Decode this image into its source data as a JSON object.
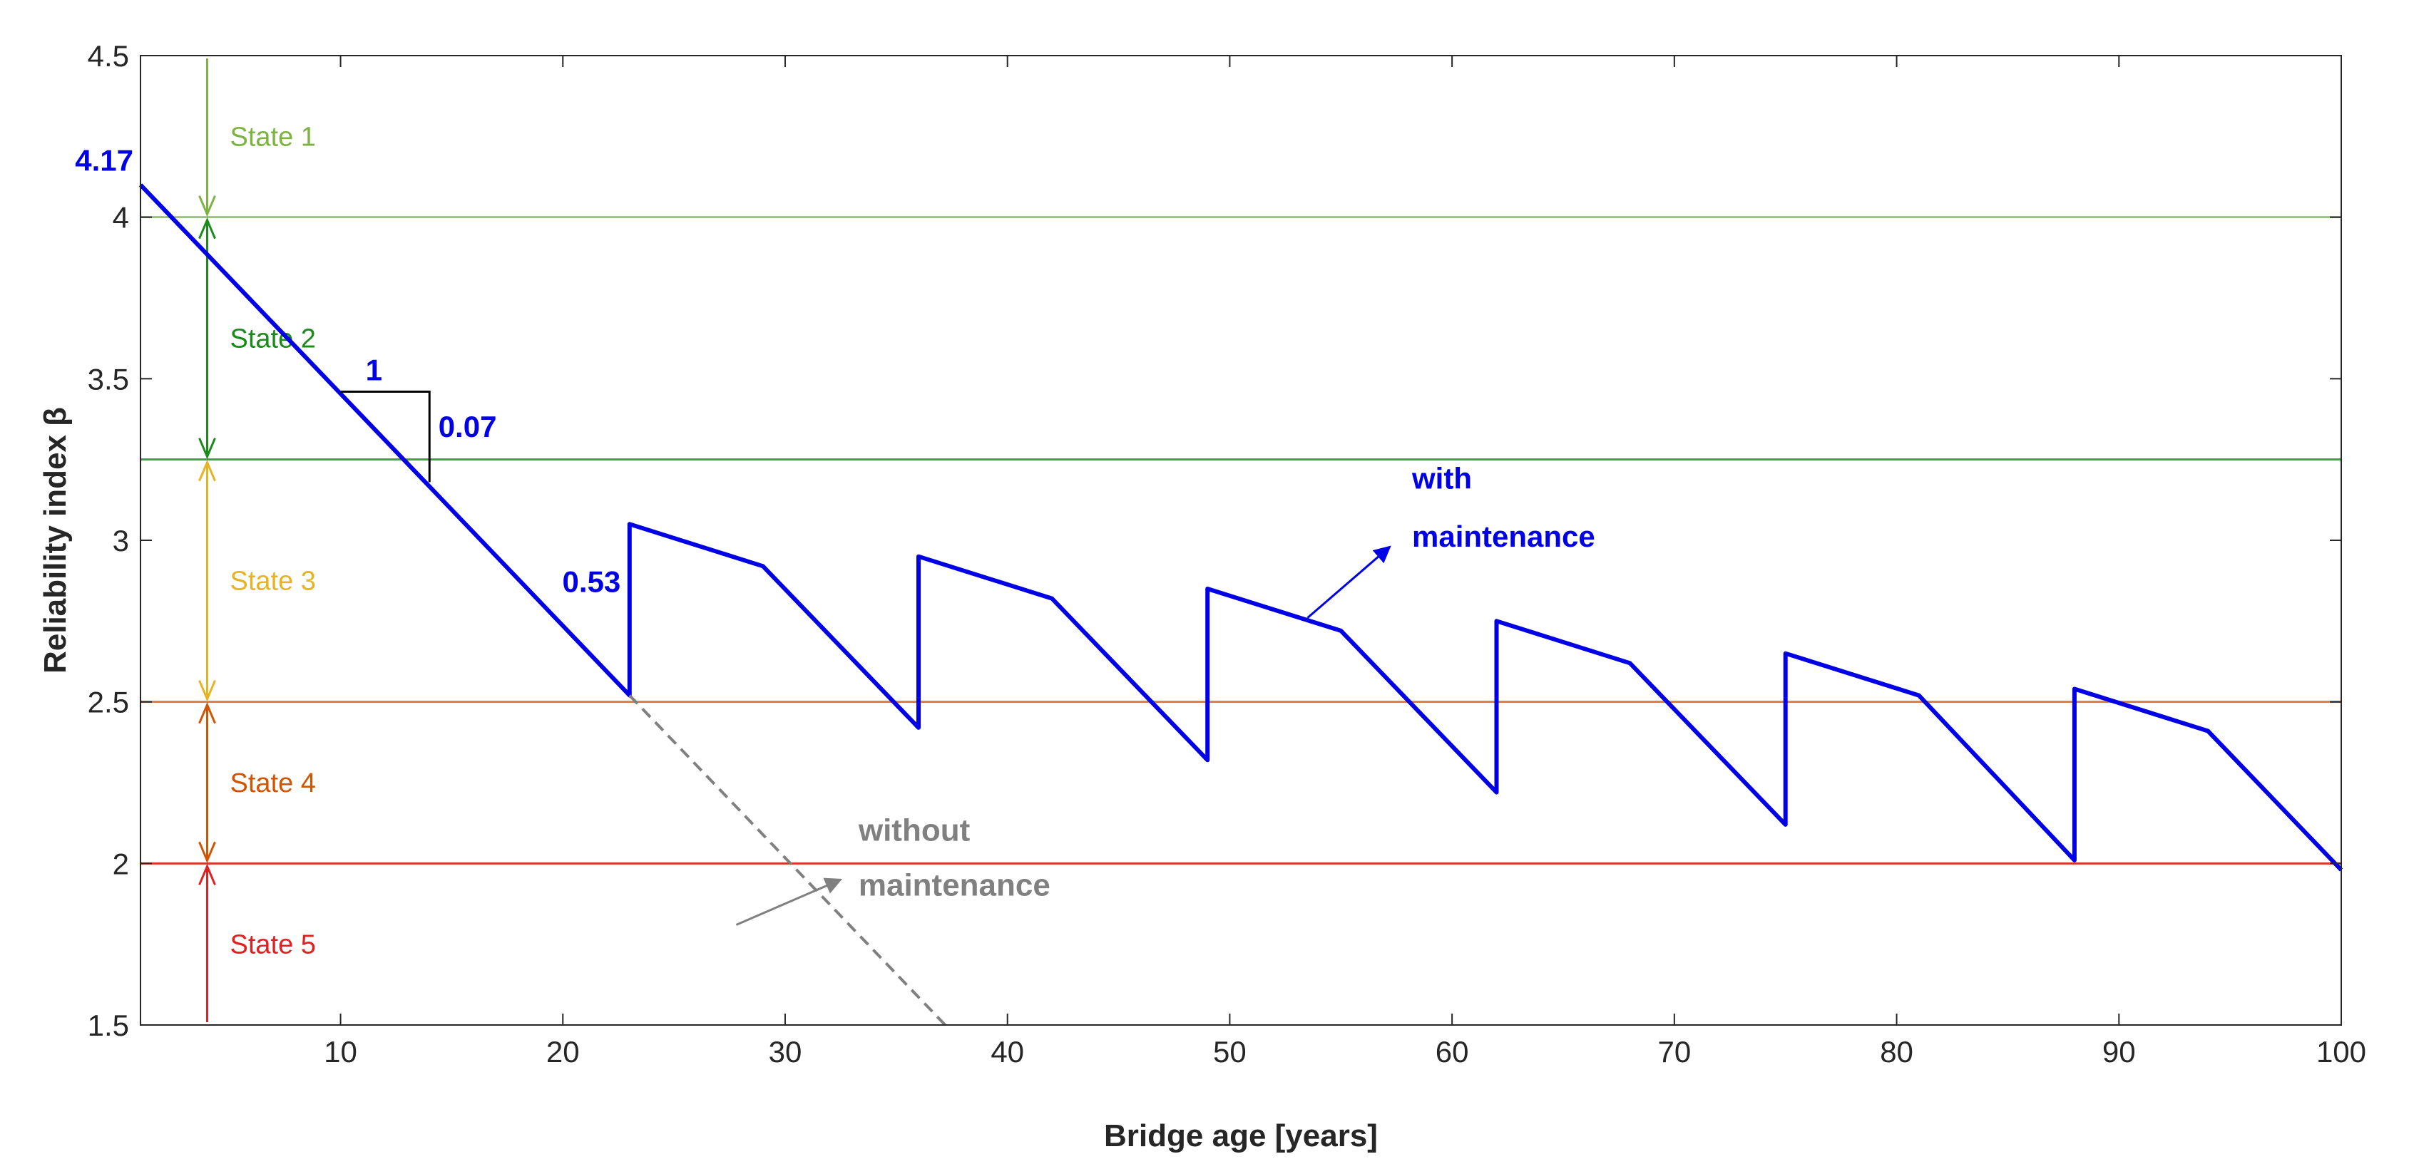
{
  "chart_data": {
    "type": "line",
    "title": "",
    "xlabel": "Bridge age [years]",
    "ylabel": "Reliability index β",
    "xlim": [
      1,
      100
    ],
    "ylim": [
      1.5,
      4.5
    ],
    "xticks": [
      10,
      20,
      30,
      40,
      50,
      60,
      70,
      80,
      90,
      100
    ],
    "yticks": [
      1.5,
      2,
      2.5,
      3,
      3.5,
      4,
      4.5
    ],
    "grid": false,
    "series": [
      {
        "name": "with maintenance",
        "color": "#0000e6",
        "style": "solid",
        "x": [
          1,
          23,
          23,
          29,
          36,
          36,
          42,
          49,
          49,
          55,
          62,
          62,
          68,
          75,
          75,
          81,
          88,
          88,
          94,
          100
        ],
        "y": [
          4.1,
          2.52,
          3.05,
          2.92,
          2.42,
          2.95,
          2.82,
          2.32,
          2.85,
          2.72,
          2.22,
          2.75,
          2.62,
          2.12,
          2.65,
          2.52,
          2.01,
          2.54,
          2.41,
          1.98
        ]
      },
      {
        "name": "without maintenance",
        "color": "#808080",
        "style": "dashed",
        "x": [
          23,
          37.2
        ],
        "y": [
          2.52,
          1.5
        ]
      }
    ],
    "thresholds": [
      {
        "y": 4.0,
        "color": "#9dc37a"
      },
      {
        "y": 3.25,
        "color": "#3aa23a"
      },
      {
        "y": 2.5,
        "color": "#e07b39"
      },
      {
        "y": 2.0,
        "color": "#e03030"
      }
    ],
    "states": [
      {
        "label": "State 1",
        "from": 4.5,
        "to": 4.0,
        "color": "#7cb342"
      },
      {
        "label": "State 2",
        "from": 4.0,
        "to": 3.25,
        "color": "#1a8a1a"
      },
      {
        "label": "State 3",
        "from": 3.25,
        "to": 2.5,
        "color": "#e6b422"
      },
      {
        "label": "State 4",
        "from": 2.5,
        "to": 2.0,
        "color": "#d35400"
      },
      {
        "label": "State 5",
        "from": 2.0,
        "to": 1.5,
        "color": "#e02020"
      }
    ],
    "state_arrow_x": 4,
    "annotations": {
      "initial_value": "4.17",
      "slope_run": "1",
      "slope_rise": "0.07",
      "jump_value": "0.53",
      "with_line1": "with",
      "with_line2": "maintenance",
      "without_line1": "without",
      "without_line2": "maintenance"
    }
  }
}
